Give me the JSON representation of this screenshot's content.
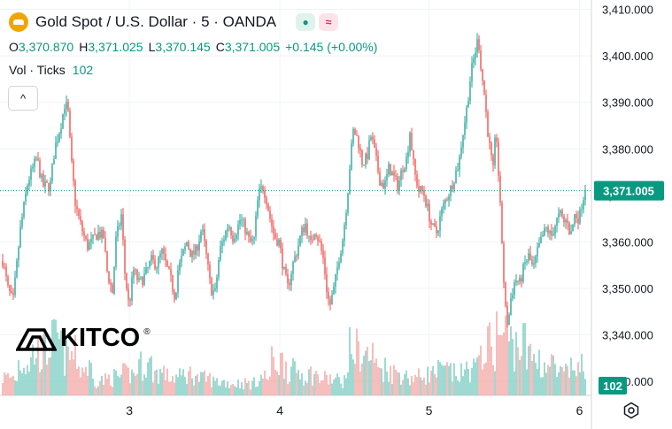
{
  "header": {
    "symbol_title": "Gold Spot / U.S. Dollar · 5 · OANDA",
    "ohlc": {
      "open_label": "O",
      "open": "3,370.870",
      "high_label": "H",
      "high": "3,371.025",
      "low_label": "L",
      "low": "3,370.145",
      "close_label": "C",
      "close": "3,371.005",
      "change": "+0.145 (+0.00%)"
    },
    "volume_label": "Vol · Ticks",
    "volume_value": "102",
    "collapse_glyph": "^"
  },
  "watermark": {
    "text": "KITCO",
    "reg": "®"
  },
  "colors": {
    "up": "#26a69a",
    "down": "#ef5350",
    "up_text": "#089981",
    "down_volume": "#f4a9a7",
    "up_volume": "#7fcfc4",
    "grid": "#f0f3fa",
    "price_tag": "#089981"
  },
  "chart_data": {
    "type": "candlestick",
    "title": "",
    "xlabel": "",
    "ylabel": "",
    "x_ticks": [
      "3",
      "4",
      "5",
      "6"
    ],
    "y_ticks": [
      "3,410.000",
      "3,400.000",
      "3,390.000",
      "3,380.000",
      "3,370.000",
      "3,360.000",
      "3,350.000",
      "3,340.000",
      "3,330.000"
    ],
    "ylim": [
      3327,
      3412
    ],
    "last_price": "3,371.005",
    "last_volume": "102",
    "interval": "5",
    "grid": true,
    "price_path": [
      [
        0.0,
        3356
      ],
      [
        0.35,
        3350
      ],
      [
        0.7,
        3347
      ],
      [
        1.2,
        3363
      ],
      [
        1.7,
        3373
      ],
      [
        2.3,
        3378
      ],
      [
        2.7,
        3372
      ],
      [
        3.0,
        3372
      ],
      [
        3.2,
        3372
      ],
      [
        3.5,
        3380
      ],
      [
        3.9,
        3385
      ],
      [
        4.2,
        3390
      ],
      [
        4.4,
        3388
      ],
      [
        4.6,
        3378
      ],
      [
        4.9,
        3368
      ],
      [
        5.3,
        3363
      ],
      [
        5.7,
        3359
      ],
      [
        6.0,
        3360
      ],
      [
        6.4,
        3362
      ],
      [
        6.8,
        3361
      ],
      [
        7.0,
        3354
      ],
      [
        7.4,
        3349
      ],
      [
        7.6,
        3360
      ],
      [
        8.0,
        3366
      ],
      [
        8.2,
        3354
      ],
      [
        8.5,
        3346
      ],
      [
        8.8,
        3354
      ],
      [
        9.2,
        3351
      ],
      [
        9.6,
        3353
      ],
      [
        10.0,
        3356
      ],
      [
        10.4,
        3355
      ],
      [
        10.7,
        3358
      ],
      [
        11.0,
        3355
      ],
      [
        11.3,
        3352
      ],
      [
        11.6,
        3348
      ],
      [
        11.8,
        3354
      ],
      [
        12.1,
        3357
      ],
      [
        12.4,
        3360
      ],
      [
        12.7,
        3357
      ],
      [
        13.0,
        3358
      ],
      [
        13.4,
        3363
      ],
      [
        13.7,
        3357
      ],
      [
        14.0,
        3350
      ],
      [
        14.3,
        3349
      ],
      [
        14.6,
        3358
      ],
      [
        14.9,
        3361
      ],
      [
        15.2,
        3364
      ],
      [
        15.5,
        3361
      ],
      [
        15.8,
        3363
      ],
      [
        16.0,
        3365
      ],
      [
        16.3,
        3363
      ],
      [
        16.6,
        3360
      ],
      [
        16.9,
        3360
      ],
      [
        17.2,
        3370
      ],
      [
        17.5,
        3372
      ],
      [
        17.7,
        3370
      ],
      [
        18.0,
        3365
      ],
      [
        18.3,
        3361
      ],
      [
        18.6,
        3360
      ],
      [
        18.9,
        3354
      ],
      [
        19.2,
        3350
      ],
      [
        19.5,
        3355
      ],
      [
        19.8,
        3358
      ],
      [
        20.1,
        3362
      ],
      [
        20.4,
        3364
      ],
      [
        20.7,
        3359
      ],
      [
        21.0,
        3363
      ],
      [
        21.3,
        3360
      ],
      [
        21.6,
        3356
      ],
      [
        21.8,
        3350
      ],
      [
        22.0,
        3346
      ],
      [
        22.3,
        3350
      ],
      [
        22.6,
        3356
      ],
      [
        22.9,
        3361
      ],
      [
        23.2,
        3370
      ],
      [
        23.4,
        3378
      ],
      [
        23.6,
        3384
      ],
      [
        23.9,
        3382
      ],
      [
        24.2,
        3377
      ],
      [
        24.5,
        3378
      ],
      [
        24.8,
        3383
      ],
      [
        25.1,
        3378
      ],
      [
        25.4,
        3373
      ],
      [
        25.7,
        3372
      ],
      [
        26.0,
        3376
      ],
      [
        26.3,
        3374
      ],
      [
        26.6,
        3372
      ],
      [
        26.9,
        3376
      ],
      [
        27.2,
        3378
      ],
      [
        27.4,
        3384
      ],
      [
        27.7,
        3375
      ],
      [
        28.0,
        3371
      ],
      [
        28.3,
        3371
      ],
      [
        28.6,
        3367
      ],
      [
        28.9,
        3363
      ],
      [
        29.2,
        3362
      ],
      [
        29.5,
        3366
      ],
      [
        29.8,
        3369
      ],
      [
        30.1,
        3371
      ],
      [
        30.4,
        3374
      ],
      [
        30.7,
        3377
      ],
      [
        30.9,
        3382
      ],
      [
        31.2,
        3388
      ],
      [
        31.5,
        3396
      ],
      [
        31.8,
        3401
      ],
      [
        32.0,
        3404
      ],
      [
        32.2,
        3397
      ],
      [
        32.4,
        3392
      ],
      [
        32.7,
        3382
      ],
      [
        33.0,
        3375
      ],
      [
        33.2,
        3385
      ],
      [
        33.4,
        3372
      ],
      [
        33.6,
        3360
      ],
      [
        33.8,
        3346
      ],
      [
        34.0,
        3342
      ],
      [
        34.2,
        3348
      ],
      [
        34.5,
        3352
      ],
      [
        34.8,
        3351
      ],
      [
        35.1,
        3355
      ],
      [
        35.4,
        3357
      ],
      [
        35.7,
        3354
      ],
      [
        36.0,
        3358
      ],
      [
        36.3,
        3361
      ],
      [
        36.6,
        3363
      ],
      [
        36.9,
        3361
      ],
      [
        37.2,
        3364
      ],
      [
        37.5,
        3366
      ],
      [
        37.8,
        3364
      ],
      [
        38.0,
        3365
      ],
      [
        38.2,
        3361
      ],
      [
        38.5,
        3366
      ],
      [
        38.8,
        3365
      ],
      [
        39.0,
        3369
      ],
      [
        39.2,
        3371
      ]
    ],
    "volume_profile": [
      [
        0,
        12
      ],
      [
        1,
        22
      ],
      [
        2,
        28
      ],
      [
        3,
        35
      ],
      [
        4,
        26
      ],
      [
        5,
        18
      ],
      [
        6,
        10
      ],
      [
        7,
        12
      ],
      [
        8,
        14
      ],
      [
        9,
        20
      ],
      [
        10,
        15
      ],
      [
        11,
        12
      ],
      [
        12,
        14
      ],
      [
        13,
        11
      ],
      [
        14,
        9
      ],
      [
        15,
        8
      ],
      [
        16,
        8
      ],
      [
        17,
        12
      ],
      [
        18,
        22
      ],
      [
        19,
        16
      ],
      [
        20,
        14
      ],
      [
        21,
        11
      ],
      [
        22,
        10
      ],
      [
        23,
        30
      ],
      [
        24,
        26
      ],
      [
        25,
        18
      ],
      [
        26,
        15
      ],
      [
        27,
        12
      ],
      [
        28,
        14
      ],
      [
        29,
        16
      ],
      [
        30,
        14
      ],
      [
        31,
        18
      ],
      [
        32,
        32
      ],
      [
        33,
        40
      ],
      [
        34,
        34
      ],
      [
        35,
        25
      ],
      [
        36,
        20
      ],
      [
        37,
        14
      ],
      [
        38,
        18
      ],
      [
        39,
        12
      ]
    ],
    "day_boundaries": [
      {
        "label": "3",
        "x": 8.5
      },
      {
        "label": "4",
        "x": 18.6
      },
      {
        "label": "5",
        "x": 28.6
      },
      {
        "label": "6",
        "x": 38.7
      }
    ]
  }
}
